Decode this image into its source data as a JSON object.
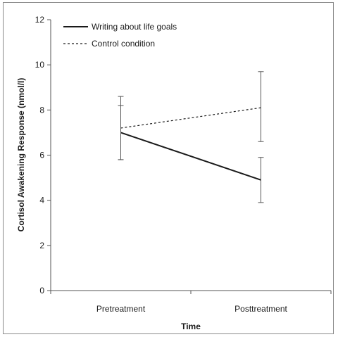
{
  "chart_data": {
    "type": "line",
    "xlabel": "Time",
    "ylabel": "Cortisol Awakening Response  (nmol/l)",
    "categories": [
      "Pretreatment",
      "Posttreatment"
    ],
    "ylim": [
      0,
      12
    ],
    "yticks": [
      "0",
      "2",
      "4",
      "6",
      "8",
      "10",
      "12"
    ],
    "grid": false,
    "legend_position": "top-left",
    "series": [
      {
        "name": "Writing about life goals",
        "style": "solid",
        "color": "#1a1a1a",
        "values": [
          7.0,
          4.9
        ],
        "error_low": [
          5.8,
          3.9
        ],
        "error_high": [
          8.2,
          5.9
        ]
      },
      {
        "name": "Control condition",
        "style": "dotted",
        "color": "#1a1a1a",
        "values": [
          7.2,
          8.1
        ],
        "error_low": [
          5.8,
          6.6
        ],
        "error_high": [
          8.6,
          9.7
        ]
      }
    ]
  }
}
